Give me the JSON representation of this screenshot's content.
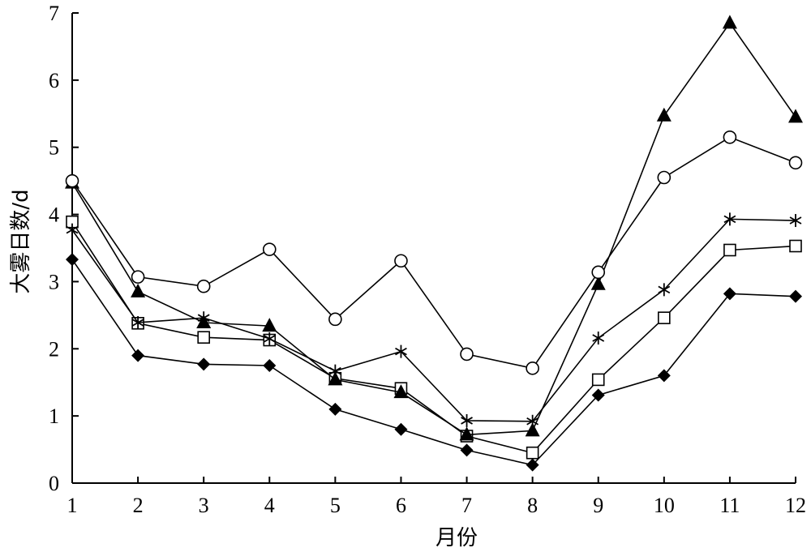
{
  "chart_data": {
    "type": "line",
    "title": "",
    "xlabel": "月份",
    "ylabel": "大雾日数/d",
    "x": [
      1,
      2,
      3,
      4,
      5,
      6,
      7,
      8,
      9,
      10,
      11,
      12
    ],
    "x_tick_labels": [
      "1",
      "2",
      "3",
      "4",
      "5",
      "6",
      "7",
      "8",
      "9",
      "10",
      "11",
      "12"
    ],
    "y_tick_labels": [
      "0",
      "1",
      "2",
      "3",
      "4",
      "5",
      "6",
      "7"
    ],
    "xlim": [
      1,
      12
    ],
    "ylim": [
      0,
      7
    ],
    "grid": false,
    "legend": "none",
    "series": [
      {
        "marker": "triangle-filled",
        "values": [
          4.47,
          2.85,
          2.39,
          2.34,
          1.54,
          1.35,
          0.72,
          0.78,
          2.96,
          5.47,
          6.85,
          5.45
        ]
      },
      {
        "marker": "circle-open",
        "values": [
          4.5,
          3.07,
          2.93,
          3.48,
          2.44,
          3.31,
          1.92,
          1.71,
          3.14,
          4.55,
          5.15,
          4.77
        ]
      },
      {
        "marker": "asterisk",
        "values": [
          3.77,
          2.39,
          2.46,
          2.15,
          1.67,
          1.96,
          0.93,
          0.92,
          2.16,
          2.88,
          3.93,
          3.91
        ]
      },
      {
        "marker": "square-open",
        "values": [
          3.89,
          2.38,
          2.17,
          2.13,
          1.56,
          1.41,
          0.7,
          0.45,
          1.54,
          2.46,
          3.47,
          3.53
        ]
      },
      {
        "marker": "diamond-filled",
        "values": [
          3.33,
          1.9,
          1.77,
          1.75,
          1.1,
          0.8,
          0.49,
          0.27,
          1.31,
          1.6,
          2.82,
          2.78
        ]
      }
    ]
  }
}
